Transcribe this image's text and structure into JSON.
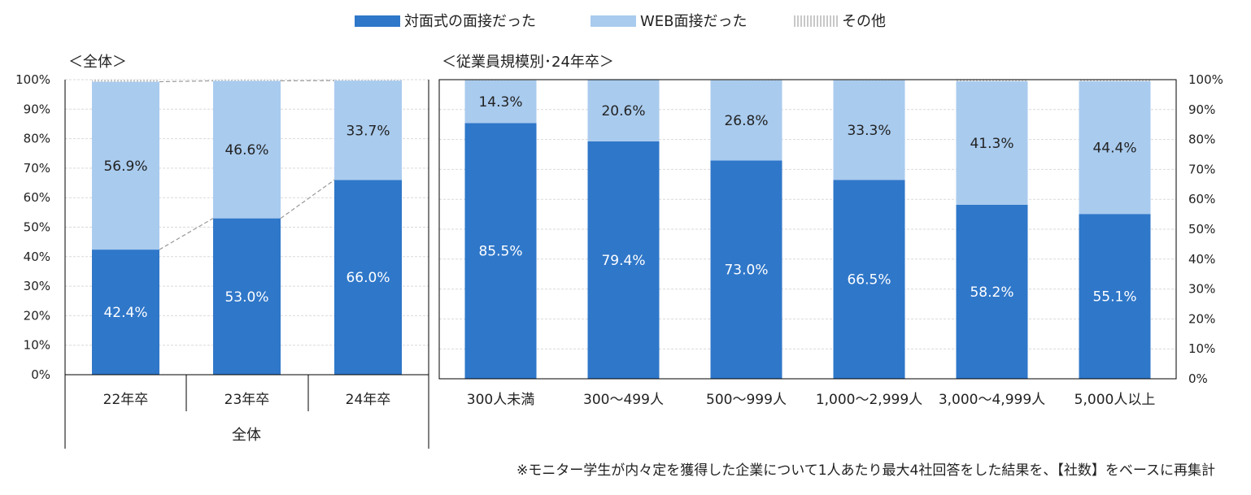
{
  "chart_data": [
    {
      "type": "bar",
      "stacked": true,
      "title": "＜全体＞",
      "group_label": "全体",
      "categories": [
        "22年卒",
        "23年卒",
        "24年卒"
      ],
      "series": [
        {
          "name": "対面式の面接だった",
          "values": [
            42.4,
            53.0,
            66.0
          ],
          "labels": [
            "42.4%",
            "53.0%",
            "66.0%"
          ]
        },
        {
          "name": "WEB面接だった",
          "values": [
            56.9,
            46.6,
            33.7
          ],
          "labels": [
            "56.9%",
            "46.6%",
            "33.7%"
          ]
        },
        {
          "name": "その他",
          "values": [
            0.7,
            0.4,
            0.3
          ]
        }
      ],
      "yticks": [
        "0%",
        "10%",
        "20%",
        "30%",
        "40%",
        "50%",
        "60%",
        "70%",
        "80%",
        "90%",
        "100%"
      ],
      "ylim": [
        0,
        100
      ]
    },
    {
      "type": "bar",
      "stacked": true,
      "title": "＜従業員規模別･24年卒＞",
      "categories": [
        "300人未満",
        "300～499人",
        "500～999人",
        "1,000～2,999人",
        "3,000～4,999人",
        "5,000人以上"
      ],
      "series": [
        {
          "name": "対面式の面接だった",
          "values": [
            85.5,
            79.4,
            73.0,
            66.5,
            58.2,
            55.1
          ],
          "labels": [
            "85.5%",
            "79.4%",
            "73.0%",
            "66.5%",
            "58.2%",
            "55.1%"
          ]
        },
        {
          "name": "WEB面接だった",
          "values": [
            14.3,
            20.6,
            26.8,
            33.3,
            41.3,
            44.4
          ],
          "labels": [
            "14.3%",
            "20.6%",
            "26.8%",
            "33.3%",
            "41.3%",
            "44.4%"
          ]
        },
        {
          "name": "その他",
          "values": [
            0.2,
            0.0,
            0.2,
            0.2,
            0.5,
            0.5
          ]
        }
      ],
      "yticks": [
        "0%",
        "10%",
        "20%",
        "30%",
        "40%",
        "50%",
        "60%",
        "70%",
        "80%",
        "90%",
        "100%"
      ],
      "ylim": [
        0,
        100
      ]
    }
  ],
  "legend": [
    {
      "label": "対面式の面接だった",
      "color": "#2f77c9",
      "style": "solid"
    },
    {
      "label": "WEB面接だった",
      "color": "#a9cbee",
      "style": "solid"
    },
    {
      "label": "その他",
      "color": "#c8c8c8",
      "style": "dotted"
    }
  ],
  "colors": {
    "face": "#2f77c9",
    "web": "#a9cbee",
    "other": "#d8d8d8",
    "connector": "#999999"
  },
  "footnote": "※モニター学生が内々定を獲得した企業について1人あたり最大4社回答をした結果を、【社数】をベースに再集計"
}
